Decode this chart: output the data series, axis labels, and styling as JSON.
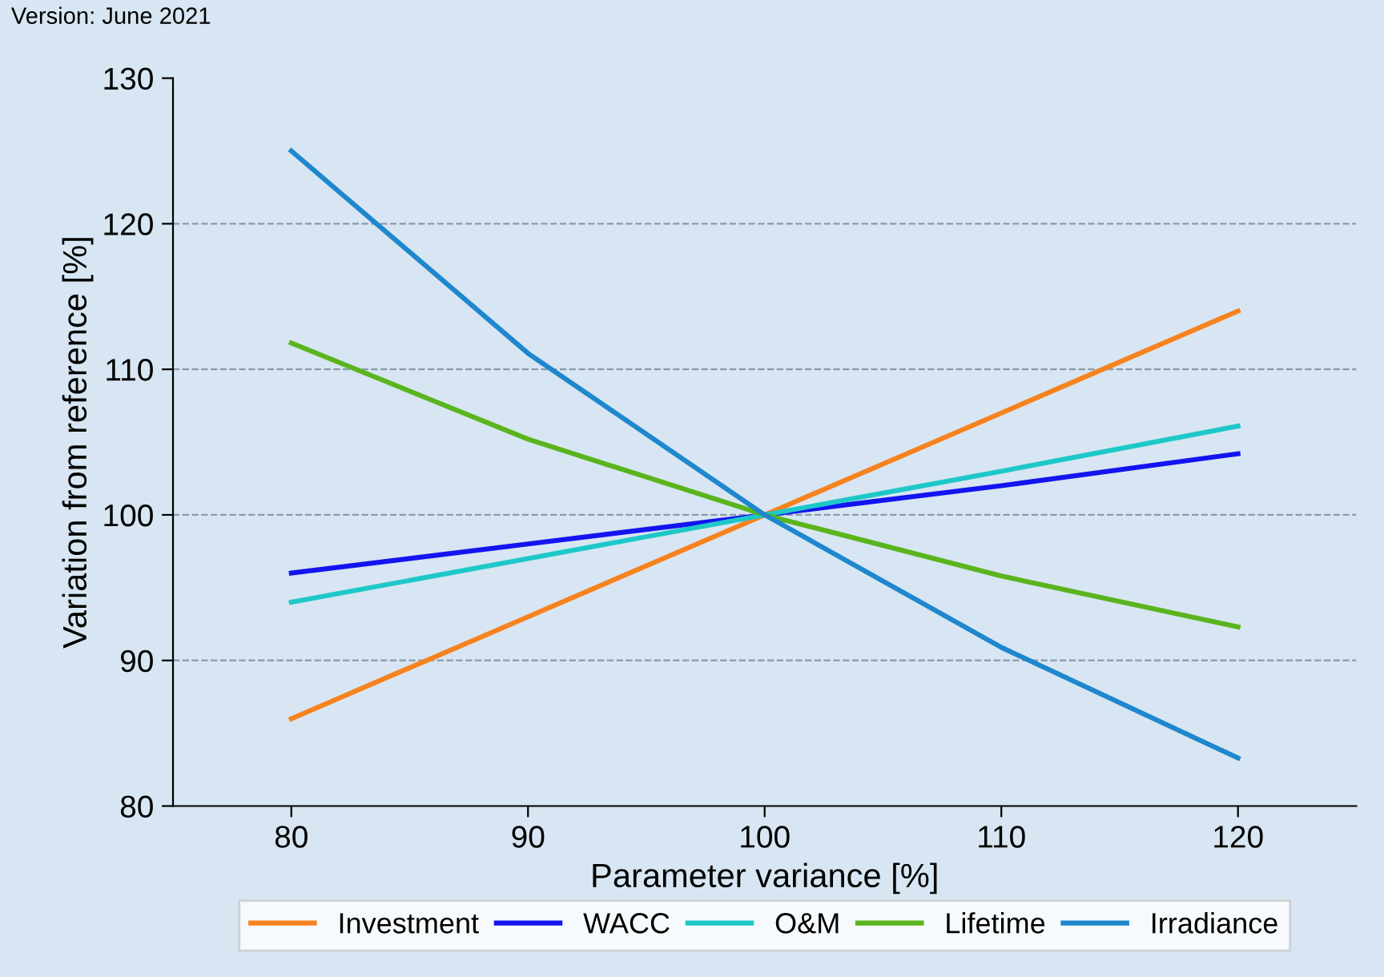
{
  "chart_data": {
    "type": "line",
    "xlabel": "Parameter variance [%]",
    "ylabel": "Variation from reference [%]",
    "annotations": [
      "Version: June 2021"
    ],
    "x": [
      80,
      90,
      100,
      110,
      120
    ],
    "series": [
      {
        "name": "Investment",
        "color": "#f7821e",
        "values": [
          86,
          93,
          100,
          107,
          114
        ]
      },
      {
        "name": "WACC",
        "color": "#1414f0",
        "values": [
          96,
          98,
          100,
          102,
          104.2
        ]
      },
      {
        "name": "O&M",
        "color": "#1ec8c8",
        "values": [
          94,
          97,
          100,
          103,
          106.1
        ]
      },
      {
        "name": "Lifetime",
        "color": "#5ab41e",
        "values": [
          111.8,
          105.2,
          100,
          95.8,
          92.3
        ]
      },
      {
        "name": "Irradiance",
        "color": "#1e87cd",
        "values": [
          125,
          111.1,
          100,
          90.9,
          83.3
        ]
      }
    ],
    "xlim": [
      75,
      125
    ],
    "xticks": [
      80,
      90,
      100,
      110,
      120
    ],
    "ylim": [
      80,
      130
    ],
    "yticks": [
      80,
      90,
      100,
      110,
      120,
      130
    ],
    "grid": "y",
    "legend": "bottom",
    "marker": "none",
    "line_style": "solid"
  }
}
